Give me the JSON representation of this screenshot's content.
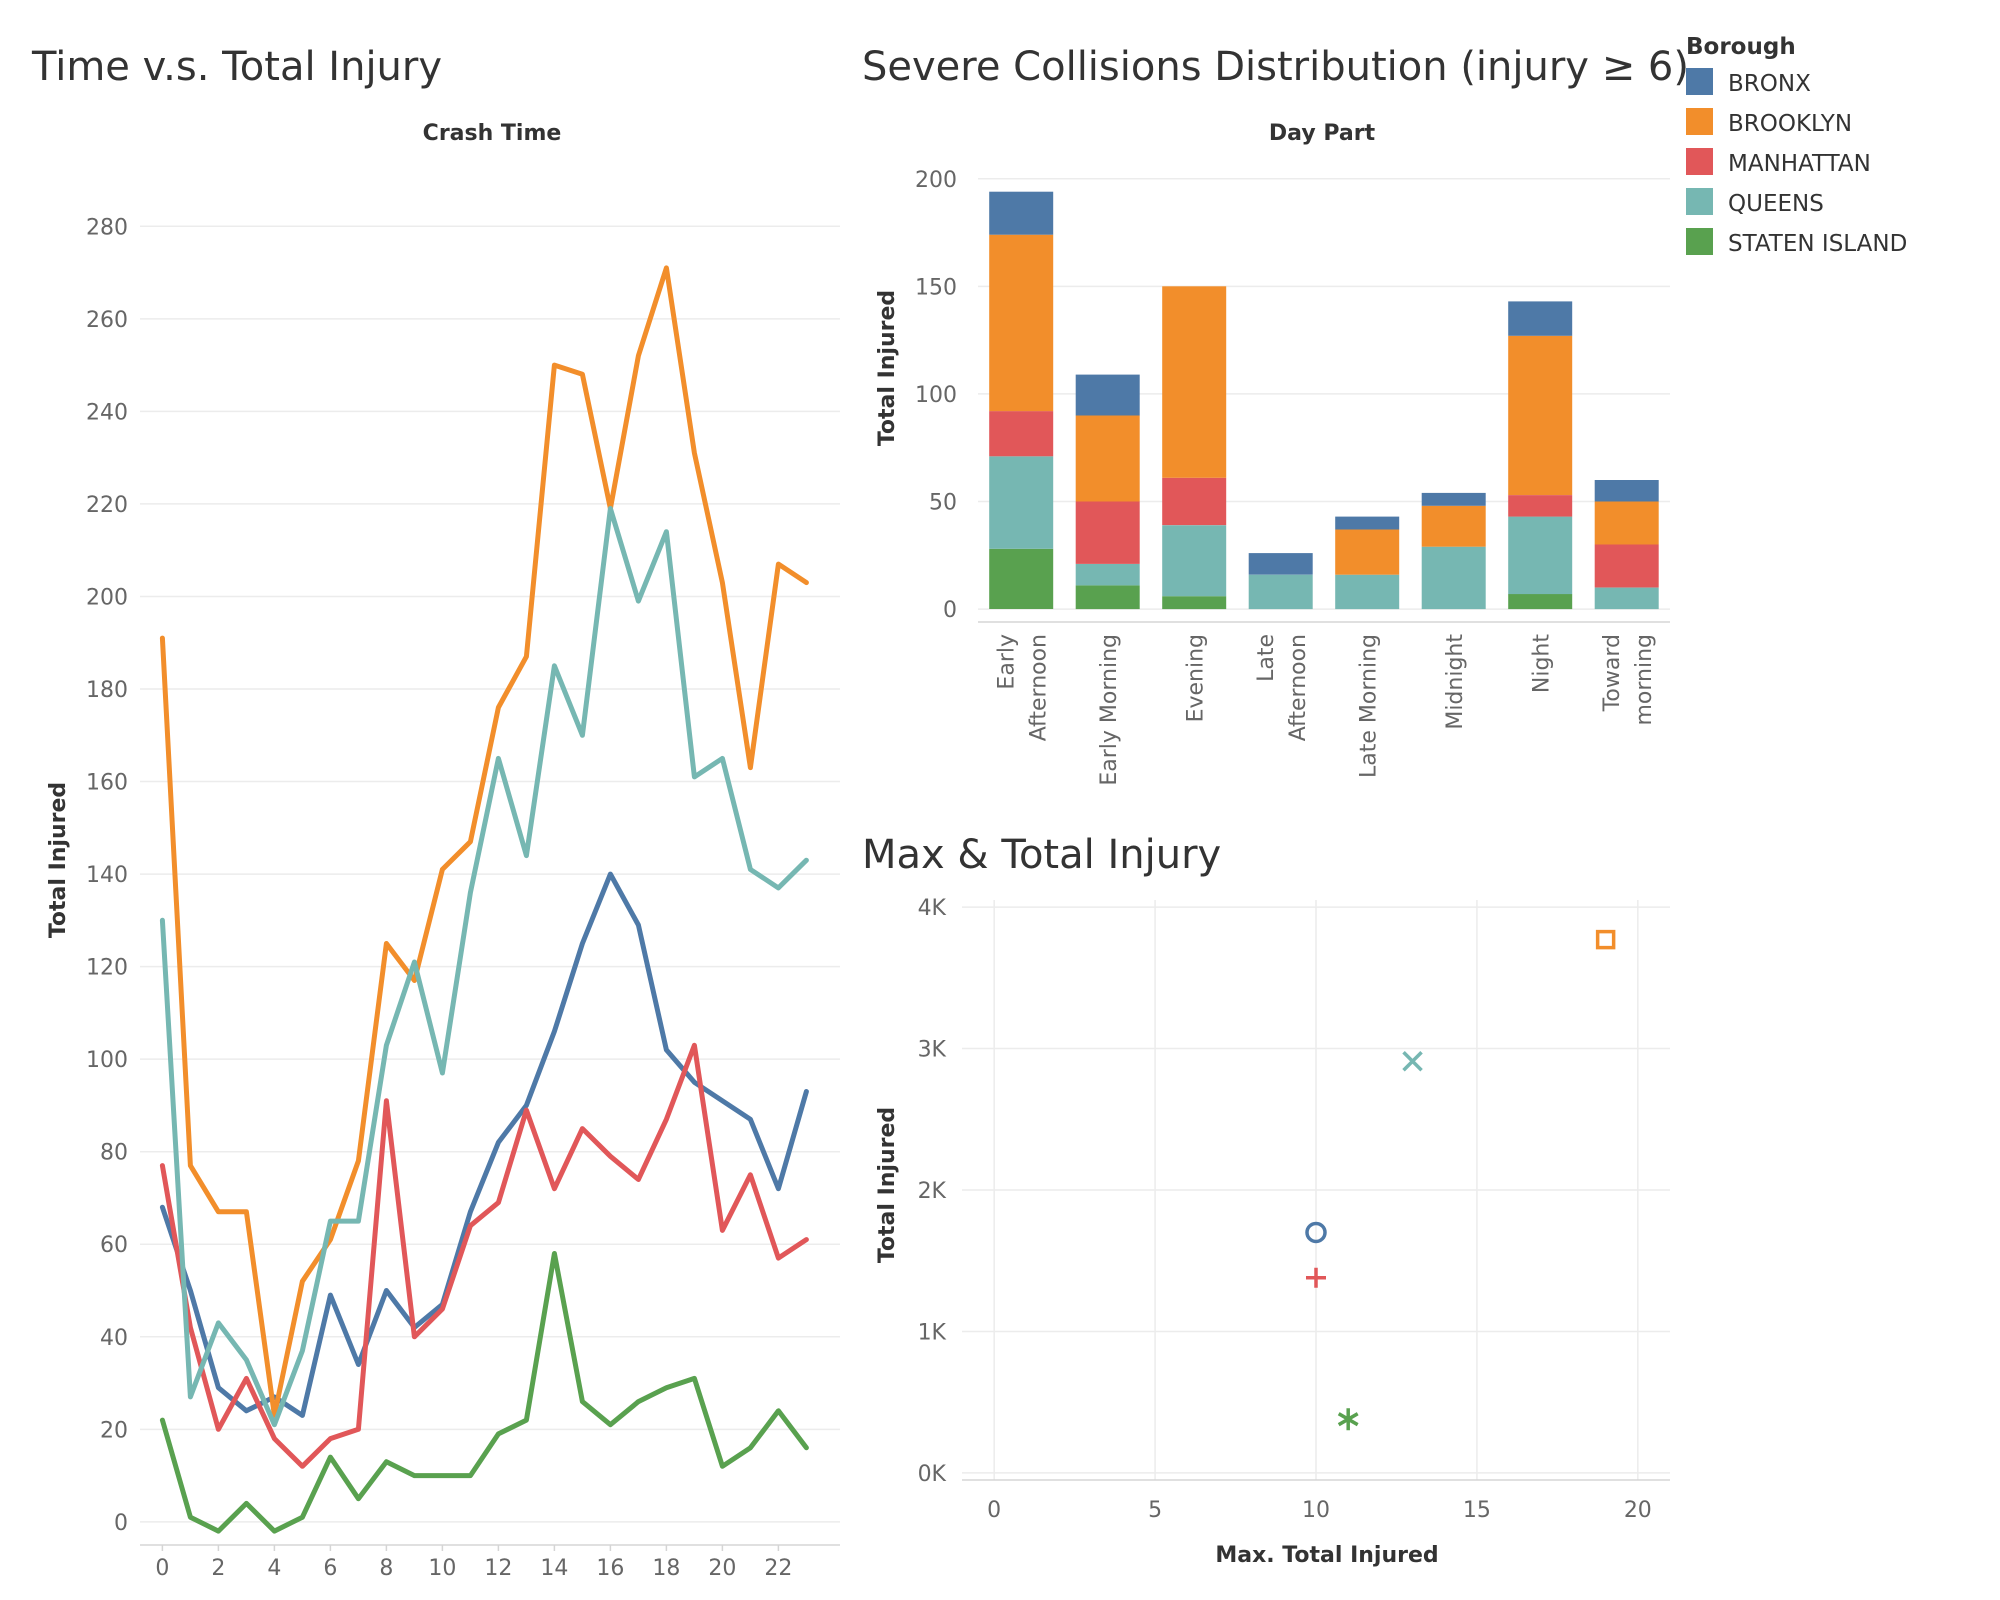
{
  "legend": {
    "title": "Borough",
    "items": [
      {
        "label": "BRONX",
        "color": "#4e79a7"
      },
      {
        "label": "BROOKLYN",
        "color": "#f28e2b"
      },
      {
        "label": "MANHATTAN",
        "color": "#e15759"
      },
      {
        "label": "QUEENS",
        "color": "#76b7b2"
      },
      {
        "label": "STATEN ISLAND",
        "color": "#59a14f"
      }
    ]
  },
  "chart_data": [
    {
      "type": "line",
      "title": "Time v.s. Total Injury",
      "xlabel": "Crash Time",
      "ylabel": "Total Injured",
      "x": [
        0,
        1,
        2,
        3,
        4,
        5,
        6,
        7,
        8,
        9,
        10,
        11,
        12,
        13,
        14,
        15,
        16,
        17,
        18,
        19,
        20,
        21,
        22,
        23
      ],
      "xticks": [
        "0",
        "2",
        "4",
        "6",
        "8",
        "10",
        "12",
        "14",
        "16",
        "18",
        "20",
        "22"
      ],
      "yticks": [
        "0",
        "20",
        "40",
        "60",
        "80",
        "100",
        "120",
        "140",
        "160",
        "180",
        "200",
        "220",
        "240",
        "260",
        "280"
      ],
      "ylim": [
        0,
        280
      ],
      "grid": true,
      "series": [
        {
          "name": "BRONX",
          "values": [
            68,
            50,
            29,
            24,
            27,
            23,
            49,
            34,
            50,
            42,
            47,
            67,
            82,
            90,
            106,
            125,
            140,
            129,
            102,
            95,
            91,
            87,
            72,
            93
          ]
        },
        {
          "name": "BROOKLYN",
          "values": [
            191,
            77,
            67,
            67,
            23,
            52,
            61,
            78,
            125,
            117,
            141,
            147,
            176,
            187,
            250,
            248,
            219,
            252,
            271,
            231,
            203,
            163,
            207,
            203
          ]
        },
        {
          "name": "MANHATTAN",
          "values": [
            77,
            42,
            20,
            31,
            18,
            12,
            18,
            20,
            91,
            40,
            46,
            64,
            69,
            89,
            72,
            85,
            79,
            74,
            87,
            103,
            63,
            75,
            57,
            61
          ]
        },
        {
          "name": "QUEENS",
          "values": [
            130,
            27,
            43,
            35,
            21,
            37,
            65,
            65,
            103,
            121,
            97,
            136,
            165,
            144,
            185,
            170,
            219,
            199,
            214,
            161,
            165,
            141,
            137,
            143
          ]
        },
        {
          "name": "STATEN ISLAND",
          "values": [
            22,
            1,
            -2,
            4,
            -2,
            1,
            14,
            5,
            13,
            10,
            10,
            10,
            19,
            22,
            58,
            26,
            21,
            26,
            29,
            31,
            12,
            16,
            24,
            16
          ]
        }
      ]
    },
    {
      "type": "bar",
      "stacked": true,
      "title": "Severe Collisions Distribution (injury ≥ 6)",
      "xlabel": "Day Part",
      "ylabel": "Total Injured",
      "categories": [
        "Early\nAfternoon",
        "Early Morning",
        "Evening",
        "Late\nAfternoon",
        "Late Morning",
        "Midnight",
        "Night",
        "Toward\nmorning"
      ],
      "yticks": [
        "0",
        "50",
        "100",
        "150",
        "200"
      ],
      "ylim": [
        0,
        200
      ],
      "grid": true,
      "series": [
        {
          "name": "STATEN ISLAND",
          "values": [
            28,
            11,
            6,
            0,
            0,
            0,
            7,
            0
          ]
        },
        {
          "name": "QUEENS",
          "values": [
            43,
            10,
            33,
            16,
            16,
            29,
            36,
            10
          ]
        },
        {
          "name": "MANHATTAN",
          "values": [
            21,
            29,
            22,
            0,
            0,
            0,
            10,
            20
          ]
        },
        {
          "name": "BROOKLYN",
          "values": [
            82,
            40,
            89,
            0,
            21,
            19,
            74,
            20
          ]
        },
        {
          "name": "BRONX",
          "values": [
            20,
            19,
            0,
            10,
            6,
            6,
            16,
            10
          ]
        }
      ]
    },
    {
      "type": "scatter",
      "title": "Max & Total Injury",
      "xlabel": "Max. Total Injured",
      "ylabel": "Total Injured",
      "xticks": [
        "0",
        "5",
        "10",
        "15",
        "20"
      ],
      "yticks": [
        "0K",
        "1K",
        "2K",
        "3K",
        "4K"
      ],
      "xlim": [
        -1,
        21
      ],
      "ylim": [
        -50,
        4050
      ],
      "grid": true,
      "points": [
        {
          "name": "BROOKLYN",
          "x": 19,
          "y": 3770,
          "marker": "square"
        },
        {
          "name": "QUEENS",
          "x": 13,
          "y": 2910,
          "marker": "x"
        },
        {
          "name": "BRONX",
          "x": 10,
          "y": 1700,
          "marker": "circle"
        },
        {
          "name": "MANHATTAN",
          "x": 10,
          "y": 1380,
          "marker": "plus"
        },
        {
          "name": "STATEN ISLAND",
          "x": 11,
          "y": 380,
          "marker": "asterisk"
        }
      ]
    }
  ]
}
